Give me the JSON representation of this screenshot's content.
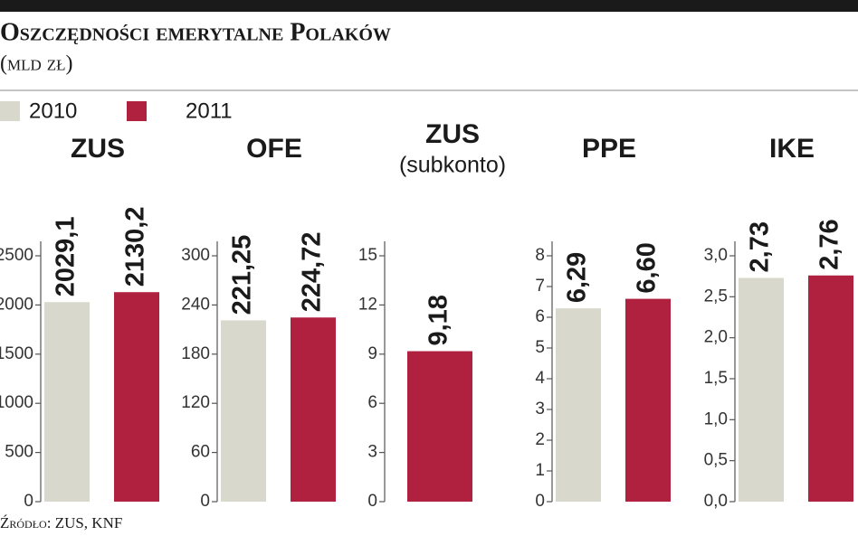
{
  "title": "Oszczędności emerytalne Polaków",
  "subtitle": "(mld zł)",
  "source": "Źródło: ZUS, KNF",
  "chart_data": [
    {
      "type": "bar",
      "title": "ZUS",
      "series": [
        {
          "name": "2010",
          "color": "#d9d8cc",
          "values": [
            2029.1
          ],
          "value_labels": [
            "2029,1"
          ]
        },
        {
          "name": "2011",
          "color": "#b0203f",
          "values": [
            2130.2
          ],
          "value_labels": [
            "2130,2"
          ]
        }
      ],
      "ylim": [
        0,
        2500
      ],
      "yticks": [
        0,
        500,
        1000,
        1500,
        2000,
        2500
      ]
    },
    {
      "type": "bar",
      "title": "OFE",
      "series": [
        {
          "name": "2010",
          "color": "#d9d8cc",
          "values": [
            221.25
          ],
          "value_labels": [
            "221,25"
          ]
        },
        {
          "name": "2011",
          "color": "#b0203f",
          "values": [
            224.72
          ],
          "value_labels": [
            "224,72"
          ]
        }
      ],
      "ylim": [
        0,
        300
      ],
      "yticks": [
        0,
        60,
        120,
        180,
        240,
        300
      ]
    },
    {
      "type": "bar",
      "title": "ZUS",
      "subtitle": "(subkonto)",
      "series": [
        {
          "name": "2010",
          "color": "#d9d8cc",
          "values": [
            null
          ],
          "value_labels": [
            null
          ]
        },
        {
          "name": "2011",
          "color": "#b0203f",
          "values": [
            9.18
          ],
          "value_labels": [
            "9,18"
          ]
        }
      ],
      "ylim": [
        0,
        15
      ],
      "yticks": [
        0,
        3,
        6,
        9,
        12,
        15
      ]
    },
    {
      "type": "bar",
      "title": "PPE",
      "series": [
        {
          "name": "2010",
          "color": "#d9d8cc",
          "values": [
            6.29
          ],
          "value_labels": [
            "6,29"
          ]
        },
        {
          "name": "2011",
          "color": "#b0203f",
          "values": [
            6.6
          ],
          "value_labels": [
            "6,60"
          ]
        }
      ],
      "ylim": [
        0,
        8
      ],
      "yticks": [
        0,
        1,
        2,
        3,
        4,
        5,
        6,
        7,
        8
      ]
    },
    {
      "type": "bar",
      "title": "IKE",
      "series": [
        {
          "name": "2010",
          "color": "#d9d8cc",
          "values": [
            2.73
          ],
          "value_labels": [
            "2,73"
          ]
        },
        {
          "name": "2011",
          "color": "#b0203f",
          "values": [
            2.76
          ],
          "value_labels": [
            "2,76"
          ]
        }
      ],
      "ylim": [
        0,
        3
      ],
      "yticks": [
        {
          "value": 0,
          "label": "0,0"
        },
        {
          "value": 0.5,
          "label": "0,5"
        },
        {
          "value": 1,
          "label": "1,0"
        },
        {
          "value": 1.5,
          "label": "1,5"
        },
        {
          "value": 2,
          "label": "2,0"
        },
        {
          "value": 2.5,
          "label": "2,5"
        },
        {
          "value": 3,
          "label": "3,0"
        }
      ]
    }
  ]
}
